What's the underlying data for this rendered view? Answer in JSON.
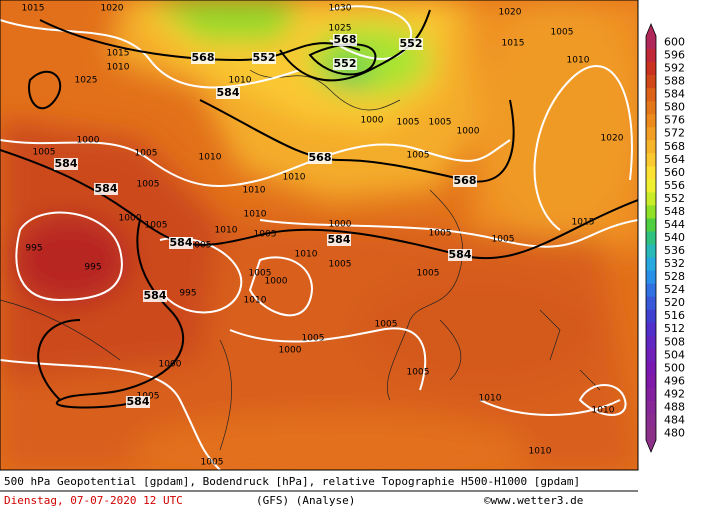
{
  "map": {
    "pressure_labels": [
      1015,
      1020,
      1015,
      1010,
      1025,
      1010,
      1025,
      1030,
      1020,
      1015,
      1005,
      1010,
      1020,
      1000,
      1005,
      1005,
      1000,
      1005,
      1000,
      1005,
      1010,
      1005,
      1010,
      1010,
      1005,
      1000,
      1005,
      995,
      995,
      995,
      1005,
      1010,
      1010,
      1005,
      1000,
      1010,
      1005,
      1000,
      1005,
      1010,
      1005,
      1005,
      1005,
      1015,
      1005,
      1000,
      1005,
      1000,
      1005,
      1005,
      1010,
      1005,
      1010,
      1010
    ],
    "geopotential_labels": [
      568,
      552,
      584,
      568,
      552,
      552,
      568,
      568,
      584,
      584,
      584,
      584,
      584,
      584,
      584
    ],
    "colorbar": [
      {
        "value": 600,
        "color": "#b0285a"
      },
      {
        "value": 596,
        "color": "#c02838"
      },
      {
        "value": 592,
        "color": "#c8321e"
      },
      {
        "value": 588,
        "color": "#d04818"
      },
      {
        "value": 584,
        "color": "#dc6218"
      },
      {
        "value": 580,
        "color": "#e4761a"
      },
      {
        "value": 576,
        "color": "#ec8a1e"
      },
      {
        "value": 572,
        "color": "#f29e24"
      },
      {
        "value": 568,
        "color": "#f6b42a"
      },
      {
        "value": 564,
        "color": "#fac830"
      },
      {
        "value": 560,
        "color": "#fce032"
      },
      {
        "value": 556,
        "color": "#f0f030"
      },
      {
        "value": 552,
        "color": "#c8ec28"
      },
      {
        "value": 548,
        "color": "#90e028"
      },
      {
        "value": 544,
        "color": "#50d040"
      },
      {
        "value": 540,
        "color": "#30c080"
      },
      {
        "value": 536,
        "color": "#28b8b8"
      },
      {
        "value": 532,
        "color": "#28a8e0"
      },
      {
        "value": 528,
        "color": "#2890e8"
      },
      {
        "value": 524,
        "color": "#3070e0"
      },
      {
        "value": 520,
        "color": "#3858d8"
      },
      {
        "value": 516,
        "color": "#4040d0"
      },
      {
        "value": 512,
        "color": "#5030c8"
      },
      {
        "value": 508,
        "color": "#6028c0"
      },
      {
        "value": 504,
        "color": "#7020b8"
      },
      {
        "value": 500,
        "color": "#7818b0"
      },
      {
        "value": 496,
        "color": "#8018a8"
      },
      {
        "value": 492,
        "color": "#8420a0"
      },
      {
        "value": 488,
        "color": "#882898"
      },
      {
        "value": 484,
        "color": "#8a2c90"
      },
      {
        "value": 480,
        "color": "#8c3088"
      }
    ]
  },
  "footer": {
    "description": "500 hPa Geopotential [gpdam], Bodendruck [hPa], relative Topographie H500-H1000 [gpdam]",
    "date": "Dienstag, 07-07-2020  12 UTC",
    "model": "(GFS)  (Analyse)",
    "copyright": "©www.wetter3.de"
  }
}
